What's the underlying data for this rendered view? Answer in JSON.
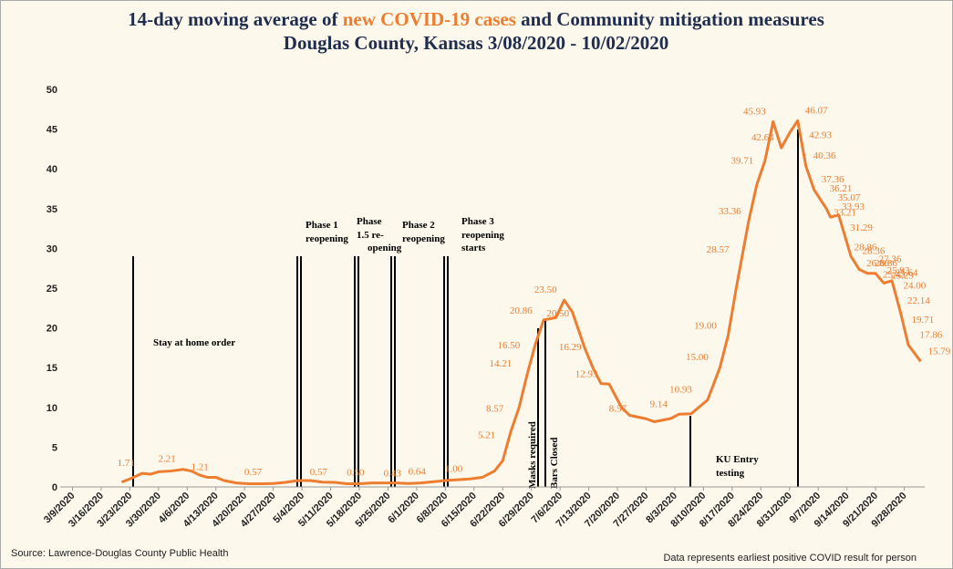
{
  "chart_data": {
    "type": "line",
    "title": [
      "14-day moving average of ",
      "new COVID-19 cases",
      " and Community mitigation measures"
    ],
    "subtitle": "Douglas County, Kansas 3/08/2020 - 10/02/2020",
    "source": "Source:  Lawrence-Douglas County  Public Health",
    "note": "Data represents  earliest positive COVID result for person",
    "xlim": [
      -3,
      208
    ],
    "xticks": [
      {
        "value": 0,
        "label": "3/9/2020"
      },
      {
        "value": 7,
        "label": "3/16/2020"
      },
      {
        "value": 14,
        "label": "3/23/2020"
      },
      {
        "value": 21,
        "label": "3/30/2020"
      },
      {
        "value": 28,
        "label": "4/6/2020"
      },
      {
        "value": 35,
        "label": "4/13/2020"
      },
      {
        "value": 42,
        "label": "4/20/2020"
      },
      {
        "value": 49,
        "label": "4/27/2020"
      },
      {
        "value": 56,
        "label": "5/4/2020"
      },
      {
        "value": 63,
        "label": "5/11/2020"
      },
      {
        "value": 70,
        "label": "5/18/2020"
      },
      {
        "value": 77,
        "label": "5/25/2020"
      },
      {
        "value": 84,
        "label": "6/1/2020"
      },
      {
        "value": 91,
        "label": "6/8/2020"
      },
      {
        "value": 98,
        "label": "6/15/2020"
      },
      {
        "value": 105,
        "label": "6/22/2020"
      },
      {
        "value": 112,
        "label": "6/29/2020"
      },
      {
        "value": 119,
        "label": "7/6/2020"
      },
      {
        "value": 126,
        "label": "7/13/2020"
      },
      {
        "value": 133,
        "label": "7/20/2020"
      },
      {
        "value": 140,
        "label": "7/27/2020"
      },
      {
        "value": 147,
        "label": "8/3/2020"
      },
      {
        "value": 154,
        "label": "8/10/2020"
      },
      {
        "value": 161,
        "label": "8/17/2020"
      },
      {
        "value": 168,
        "label": "8/24/2020"
      },
      {
        "value": 175,
        "label": "8/31/2020"
      },
      {
        "value": 182,
        "label": "9/7/2020"
      },
      {
        "value": 189,
        "label": "9/14/2020"
      },
      {
        "value": 196,
        "label": "9/21/2020"
      },
      {
        "value": 203,
        "label": "9/28/2020"
      }
    ],
    "ylim": [
      0,
      50
    ],
    "yticks": [
      0,
      5,
      10,
      15,
      20,
      25,
      30,
      35,
      40,
      45,
      50
    ],
    "series": [
      {
        "color": "#ed7d31",
        "x": [
          12,
          14,
          17,
          19,
          21,
          24,
          27,
          29,
          31,
          33,
          35,
          37,
          40,
          43,
          46,
          49,
          52,
          55,
          58,
          61,
          64,
          67,
          70,
          73,
          76,
          79,
          82,
          85,
          88,
          91,
          94,
          97,
          100,
          103,
          105,
          107,
          109,
          111,
          113,
          115,
          118,
          120,
          122,
          125,
          127,
          129,
          131,
          134,
          136,
          140,
          142,
          146,
          148,
          151,
          155,
          158,
          160,
          162,
          165,
          167,
          169,
          171,
          173,
          175,
          177,
          179,
          181,
          184,
          185,
          187,
          190,
          192,
          194,
          196,
          198,
          200,
          202,
          204,
          207
        ],
        "values": [
          0.6,
          1.0,
          1.71,
          1.6,
          1.9,
          2.0,
          2.21,
          2.0,
          1.5,
          1.2,
          1.21,
          0.8,
          0.5,
          0.4,
          0.4,
          0.43,
          0.57,
          0.8,
          0.8,
          0.6,
          0.57,
          0.4,
          0.4,
          0.5,
          0.5,
          0.5,
          0.43,
          0.5,
          0.64,
          0.8,
          0.9,
          1.0,
          1.2,
          2.0,
          3.3,
          7,
          10,
          14.21,
          18,
          21,
          21.3,
          23.5,
          22,
          17.5,
          15,
          13,
          12.93,
          10,
          9,
          8.57,
          8.2,
          8.6,
          9.14,
          9.2,
          10.93,
          15,
          19,
          25,
          33.36,
          38,
          41,
          45.93,
          42.64,
          44.5,
          46.07,
          40.36,
          37.36,
          35,
          33.93,
          34.2,
          29,
          27.36,
          26.86,
          26.86,
          25.64,
          25.93,
          22.14,
          17.86,
          15.79
        ]
      }
    ],
    "data_labels": [
      {
        "x": 17,
        "value": 1.71
      },
      {
        "x": 27,
        "value": 2.21
      },
      {
        "x": 35,
        "value": 1.21
      },
      {
        "x": 48,
        "value": 0.57
      },
      {
        "x": 64,
        "value": 0.57
      },
      {
        "x": 73,
        "value": 0.5,
        "label": "0.50"
      },
      {
        "x": 82,
        "value": 0.43
      },
      {
        "x": 88,
        "value": 0.64
      },
      {
        "x": 97,
        "value": 1.0,
        "label": "1.00"
      },
      {
        "x": 105,
        "value": 5.21
      },
      {
        "x": 107,
        "value": 8.57
      },
      {
        "x": 109,
        "value": 14.21
      },
      {
        "x": 111,
        "value": 16.5,
        "label": "16.50"
      },
      {
        "x": 114,
        "value": 20.86
      },
      {
        "x": 120,
        "value": 23.5,
        "label": "23.50"
      },
      {
        "x": 123,
        "value": 20.5,
        "label": "20.50"
      },
      {
        "x": 126,
        "value": 16.29
      },
      {
        "x": 130,
        "value": 12.93
      },
      {
        "x": 137,
        "value": 8.57
      },
      {
        "x": 147,
        "value": 9.14
      },
      {
        "x": 153,
        "value": 10.93
      },
      {
        "x": 157,
        "value": 15.0,
        "label": "15.00"
      },
      {
        "x": 159,
        "value": 19.0,
        "label": "19.00"
      },
      {
        "x": 162,
        "value": 28.57
      },
      {
        "x": 165,
        "value": 33.36
      },
      {
        "x": 168,
        "value": 39.71
      },
      {
        "x": 171,
        "value": 45.93
      },
      {
        "x": 173,
        "value": 42.64
      },
      {
        "x": 177,
        "value": 46.07
      },
      {
        "x": 178,
        "value": 42.93
      },
      {
        "x": 179,
        "value": 40.36
      },
      {
        "x": 181,
        "value": 37.36
      },
      {
        "x": 183,
        "value": 36.21
      },
      {
        "x": 185,
        "value": 35.07
      },
      {
        "x": 186,
        "value": 33.93
      },
      {
        "x": 184,
        "value": 33.21
      },
      {
        "x": 188,
        "value": 31.29
      },
      {
        "x": 189,
        "value": 28.86
      },
      {
        "x": 191,
        "value": 28.36
      },
      {
        "x": 192,
        "value": 26.86
      },
      {
        "x": 195,
        "value": 27.36
      },
      {
        "x": 194,
        "value": 26.86
      },
      {
        "x": 197,
        "value": 25.93
      },
      {
        "x": 196,
        "value": 25.43
      },
      {
        "x": 199,
        "value": 25.64
      },
      {
        "x": 198,
        "value": 25.29
      },
      {
        "x": 201,
        "value": 24.0,
        "label": "24.00"
      },
      {
        "x": 202,
        "value": 22.14
      },
      {
        "x": 203,
        "value": 19.71
      },
      {
        "x": 205,
        "value": 17.86
      },
      {
        "x": 207,
        "value": 15.79
      }
    ],
    "annotations": [
      [
        "Stay at home order"
      ],
      [
        "Phase 1",
        "reopening"
      ],
      [
        "Phase",
        "1.5 re-",
        "opening"
      ],
      [
        "Phase 2",
        "reopening"
      ],
      [
        "Phase 3",
        "reopening",
        "starts"
      ],
      [
        "Masks required"
      ],
      [
        "Bars Closed"
      ],
      [
        "KU  Entry",
        "testing"
      ]
    ]
  }
}
